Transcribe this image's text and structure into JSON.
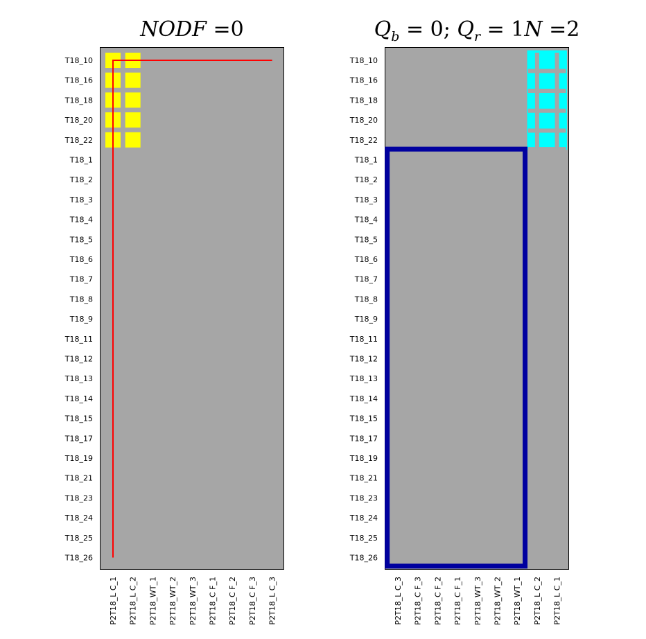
{
  "chart_data": [
    {
      "type": "heatmap",
      "title": "NODF =0",
      "title_parts": [
        "NODF",
        " =0"
      ],
      "rows": [
        "T18_10",
        "T18_16",
        "T18_18",
        "T18_20",
        "T18_22",
        "T18_1",
        "T18_2",
        "T18_3",
        "T18_4",
        "T18_5",
        "T18_6",
        "T18_7",
        "T18_8",
        "T18_9",
        "T18_11",
        "T18_12",
        "T18_13",
        "T18_14",
        "T18_15",
        "T18_17",
        "T18_19",
        "T18_21",
        "T18_23",
        "T18_24",
        "T18_25",
        "T18_26"
      ],
      "columns": [
        "P2T18_L C_1",
        "P2T18_L C_2",
        "P2T18_WT_1",
        "P2T18_WT_2",
        "P2T18_WT_3",
        "P2T18_C F_1",
        "P2T18_C F_2",
        "P2T18_C F_3",
        "P2T18_L C_3"
      ],
      "matrix_rows_present": 5,
      "matrix_cols_present": 2,
      "background_color": "#a6a6a6",
      "cell_color": "#ffff00",
      "nestedness_line_color": "#ff0000"
    },
    {
      "type": "heatmap",
      "title": "Q_b = 0; Q_r = 1N =2",
      "title_parts": [
        "Q",
        "b",
        " = 0; ",
        "Q",
        "r",
        " = 1",
        "N",
        " =2"
      ],
      "rows": [
        "T18_10",
        "T18_16",
        "T18_18",
        "T18_20",
        "T18_22",
        "T18_1",
        "T18_2",
        "T18_3",
        "T18_4",
        "T18_5",
        "T18_6",
        "T18_7",
        "T18_8",
        "T18_9",
        "T18_11",
        "T18_12",
        "T18_13",
        "T18_14",
        "T18_15",
        "T18_17",
        "T18_19",
        "T18_21",
        "T18_23",
        "T18_24",
        "T18_25",
        "T18_26"
      ],
      "columns": [
        "P2T18_L C_3",
        "P2T18_C F_3",
        "P2T18_C F_2",
        "P2T18_C F_1",
        "P2T18_WT_3",
        "P2T18_WT_2",
        "P2T18_WT_1",
        "P2T18_L C_2",
        "P2T18_L C_1"
      ],
      "modules": [
        {
          "rows": [
            "T18_10",
            "T18_16",
            "T18_18",
            "T18_20",
            "T18_22"
          ],
          "columns": [
            "P2T18_L C_2",
            "P2T18_L C_1"
          ],
          "color": "#00ffff",
          "style": "filled"
        },
        {
          "rows": [
            "T18_1",
            "T18_2",
            "T18_3",
            "T18_4",
            "T18_5",
            "T18_6",
            "T18_7",
            "T18_8",
            "T18_9",
            "T18_11",
            "T18_12",
            "T18_13",
            "T18_14",
            "T18_15",
            "T18_17",
            "T18_19",
            "T18_21",
            "T18_23",
            "T18_24",
            "T18_25",
            "T18_26"
          ],
          "columns": [
            "P2T18_L C_3",
            "P2T18_C F_3",
            "P2T18_C F_2",
            "P2T18_C F_1",
            "P2T18_WT_3",
            "P2T18_WT_2",
            "P2T18_WT_1"
          ],
          "color": "#00009f",
          "style": "outline"
        }
      ],
      "background_color": "#a6a6a6",
      "cell_grid_color": "#a6a6a6"
    }
  ]
}
